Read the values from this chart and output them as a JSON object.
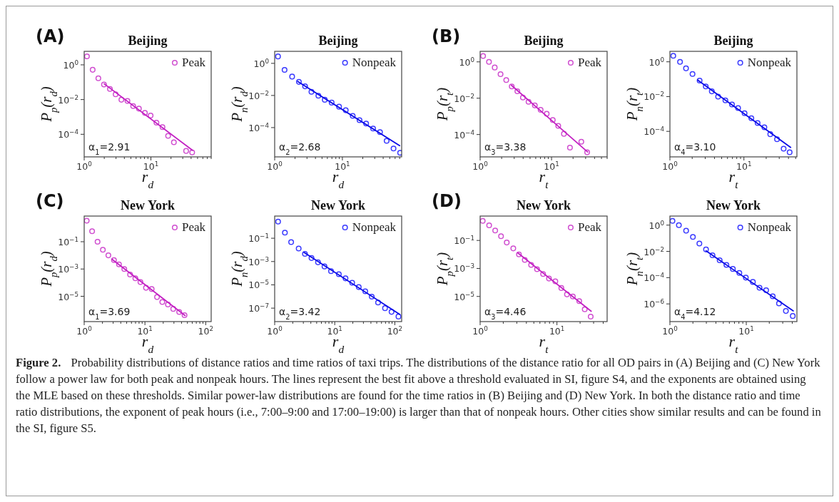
{
  "chart_data": [
    {
      "type": "scatter",
      "title": "Beijing",
      "xlabel": "r$_{d}$",
      "ylabel": "P$_{p}$(r$_{d}$)",
      "log": "xy",
      "legend": "top right",
      "marker": "circle",
      "xlim": [
        1,
        80
      ],
      "ylim": [
        5e-06,
        6
      ],
      "xticks": [
        {
          "value": 1,
          "label": "10$^{0}$"
        },
        {
          "value": 2,
          "label": null
        },
        {
          "value": 3,
          "label": null
        },
        {
          "value": 4,
          "label": null
        },
        {
          "value": 5,
          "label": null
        },
        {
          "value": 6,
          "label": null
        },
        {
          "value": 7,
          "label": null
        },
        {
          "value": 8,
          "label": null
        },
        {
          "value": 9,
          "label": null
        },
        {
          "value": 10,
          "label": "10$^{1}$"
        },
        {
          "value": 20,
          "label": null
        },
        {
          "value": 30,
          "label": null
        },
        {
          "value": 40,
          "label": null
        },
        {
          "value": 50,
          "label": null
        },
        {
          "value": 60,
          "label": null
        },
        {
          "value": 70,
          "label": null
        },
        {
          "value": 80,
          "label": null
        }
      ],
      "yticks": [
        {
          "value": 1,
          "label": "10$^{0}$"
        },
        {
          "value": 0.01,
          "label": "10$^{−2}$"
        },
        {
          "value": 0.0001,
          "label": "10$^{−4}$"
        }
      ],
      "annotations": [
        "α$_{1}$=2.91",
        "(A)"
      ],
      "series": [
        {
          "name": "Peak",
          "color": "#d04fd0",
          "x": [
            1.1,
            1.34,
            1.63,
            1.98,
            2.43,
            2.96,
            3.61,
            4.45,
            5.42,
            6.61,
            8.13,
            9.9,
            12.1,
            14.9,
            18.1,
            22.1,
            33.7,
            41.5
          ],
          "values": [
            3.1,
            0.52,
            0.17,
            0.074,
            0.041,
            0.02,
            0.0098,
            0.0083,
            0.0042,
            0.003,
            0.0017,
            0.0012,
            0.00047,
            0.00026,
            8.1e-05,
            3.5e-05,
            1.1e-05,
            9e-06
          ]
        },
        {
          "type": "line",
          "marker": "none",
          "color": "#c21fc2",
          "x": [
            2,
            42
          ],
          "values": [
            0.08,
            1.2e-05
          ]
        }
      ]
    },
    {
      "type": "scatter",
      "title": "Beijing",
      "xlabel": "r$_{d}$",
      "ylabel": "P$_{n}$(r$_{d}$)",
      "log": "xy",
      "legend": "top right",
      "marker": "circle",
      "xlim": [
        1,
        75
      ],
      "ylim": [
        1.5e-06,
        5.6
      ],
      "xticks": [
        {
          "value": 1,
          "label": "10$^{0}$"
        },
        {
          "value": 2,
          "label": null
        },
        {
          "value": 3,
          "label": null
        },
        {
          "value": 4,
          "label": null
        },
        {
          "value": 5,
          "label": null
        },
        {
          "value": 6,
          "label": null
        },
        {
          "value": 7,
          "label": null
        },
        {
          "value": 8,
          "label": null
        },
        {
          "value": 9,
          "label": null
        },
        {
          "value": 10,
          "label": "10$^{1}$"
        },
        {
          "value": 20,
          "label": null
        },
        {
          "value": 30,
          "label": null
        },
        {
          "value": 40,
          "label": null
        },
        {
          "value": 50,
          "label": null
        },
        {
          "value": 60,
          "label": null
        },
        {
          "value": 70,
          "label": null
        }
      ],
      "yticks": [
        {
          "value": 1,
          "label": "10$^{0}$"
        },
        {
          "value": 0.01,
          "label": "10$^{−2}$"
        },
        {
          "value": 0.0001,
          "label": "10$^{−4}$"
        }
      ],
      "annotations": [
        "α$_{2}$=2.68"
      ],
      "series": [
        {
          "name": "Nonpeak",
          "color": "#3a3aff",
          "x": [
            1.12,
            1.4,
            1.81,
            2.28,
            2.81,
            3.49,
            4.42,
            5.49,
            6.94,
            8.93,
            11.2,
            14.2,
            17.9,
            22.4,
            28.4,
            35.9,
            45.0,
            56.9,
            71.2
          ],
          "values": [
            2.7,
            0.39,
            0.15,
            0.07,
            0.037,
            0.017,
            0.0096,
            0.0054,
            0.0036,
            0.002,
            0.0012,
            0.00054,
            0.00029,
            0.00018,
            8.7e-05,
            5.2e-05,
            1.5e-05,
            5e-06,
            2.7e-06
          ]
        },
        {
          "type": "line",
          "marker": "none",
          "color": "#0a0ae6",
          "x": [
            2.19,
            70
          ],
          "values": [
            0.075,
            7.5e-06
          ]
        }
      ]
    },
    {
      "type": "scatter",
      "title": "Beijing",
      "xlabel": "r$_{t}$",
      "ylabel": "P$_{p}$(r$_{t}$)",
      "log": "xy",
      "legend": "top right",
      "marker": "circle",
      "xlim": [
        1,
        60
      ],
      "ylim": [
        5.9e-06,
        3.8
      ],
      "xticks": [
        {
          "value": 1,
          "label": "10$^{0}$"
        },
        {
          "value": 2,
          "label": null
        },
        {
          "value": 3,
          "label": null
        },
        {
          "value": 4,
          "label": null
        },
        {
          "value": 5,
          "label": null
        },
        {
          "value": 6,
          "label": null
        },
        {
          "value": 7,
          "label": null
        },
        {
          "value": 8,
          "label": null
        },
        {
          "value": 9,
          "label": null
        },
        {
          "value": 10,
          "label": "10$^{1}$"
        },
        {
          "value": 20,
          "label": null
        },
        {
          "value": 30,
          "label": null
        },
        {
          "value": 40,
          "label": null
        },
        {
          "value": 50,
          "label": null
        },
        {
          "value": 60,
          "label": null
        }
      ],
      "yticks": [
        {
          "value": 1,
          "label": "10$^{0}$"
        },
        {
          "value": 0.01,
          "label": "10$^{−2}$"
        },
        {
          "value": 0.0001,
          "label": "10$^{−4}$"
        }
      ],
      "annotations": [
        "α$_{3}$=3.38",
        "(B)"
      ],
      "series": [
        {
          "name": "Peak",
          "color": "#d04fd0",
          "x": [
            1.1,
            1.33,
            1.6,
            1.93,
            2.32,
            2.77,
            3.32,
            3.97,
            4.76,
            5.83,
            7.03,
            8.55,
            10.4,
            12.4,
            14.9,
            18.1,
            26.1,
            31.5
          ],
          "values": [
            2.1,
            1.0,
            0.49,
            0.21,
            0.1,
            0.044,
            0.024,
            0.011,
            0.0064,
            0.004,
            0.0023,
            0.0014,
            0.00063,
            0.0003,
            0.00011,
            1.9e-05,
            4e-05,
            1.05e-05
          ]
        },
        {
          "type": "line",
          "marker": "none",
          "color": "#c21fc2",
          "x": [
            2.75,
            32
          ],
          "values": [
            0.051,
            1.1e-05
          ]
        }
      ]
    },
    {
      "type": "scatter",
      "title": "Beijing",
      "xlabel": "r$_{t}$",
      "ylabel": "P$_{n}$(r$_{t}$)",
      "log": "xy",
      "legend": "top right",
      "marker": "circle",
      "xlim": [
        1,
        52
      ],
      "ylim": [
        3.4e-06,
        4
      ],
      "xticks": [
        {
          "value": 1,
          "label": "10$^{0}$"
        },
        {
          "value": 2,
          "label": null
        },
        {
          "value": 3,
          "label": null
        },
        {
          "value": 4,
          "label": null
        },
        {
          "value": 5,
          "label": null
        },
        {
          "value": 6,
          "label": null
        },
        {
          "value": 7,
          "label": null
        },
        {
          "value": 8,
          "label": null
        },
        {
          "value": 9,
          "label": null
        },
        {
          "value": 10,
          "label": "10$^{1}$"
        },
        {
          "value": 20,
          "label": null
        },
        {
          "value": 30,
          "label": null
        },
        {
          "value": 40,
          "label": null
        },
        {
          "value": 50,
          "label": null
        }
      ],
      "yticks": [
        {
          "value": 1,
          "label": "10$^{0}$"
        },
        {
          "value": 0.01,
          "label": "10$^{−2}$"
        },
        {
          "value": 0.0001,
          "label": "10$^{−4}$"
        }
      ],
      "annotations": [
        "α$_{4}$=3.10"
      ],
      "series": [
        {
          "name": "Nonpeak",
          "color": "#3a3aff",
          "x": [
            1.11,
            1.37,
            1.65,
            2.02,
            2.52,
            3.05,
            3.68,
            4.48,
            5.62,
            6.9,
            8.34,
            10.2,
            12.6,
            15.3,
            18.9,
            22.7,
            28.0,
            34.4,
            41.5
          ],
          "values": [
            2.2,
            1.0,
            0.42,
            0.2,
            0.083,
            0.038,
            0.02,
            0.01,
            0.0061,
            0.0035,
            0.0022,
            0.0011,
            0.00057,
            0.0003,
            0.00017,
            6.9e-05,
            3.5e-05,
            1e-05,
            6.3e-06
          ]
        },
        {
          "type": "line",
          "marker": "none",
          "color": "#0a0ae6",
          "x": [
            2.37,
            42.8
          ],
          "values": [
            0.089,
            1.2e-05
          ]
        }
      ]
    },
    {
      "type": "scatter",
      "title": "New York",
      "xlabel": "r$_{d}$",
      "ylabel": "P$_{p}$(r$_{d}$)",
      "log": "xy",
      "legend": "top right",
      "marker": "circle",
      "xlim": [
        1,
        123
      ],
      "ylim": [
        1.4e-07,
        7.6
      ],
      "xticks": [
        {
          "value": 1,
          "label": "10$^{0}$"
        },
        {
          "value": 2,
          "label": null
        },
        {
          "value": 3,
          "label": null
        },
        {
          "value": 4,
          "label": null
        },
        {
          "value": 5,
          "label": null
        },
        {
          "value": 6,
          "label": null
        },
        {
          "value": 7,
          "label": null
        },
        {
          "value": 8,
          "label": null
        },
        {
          "value": 9,
          "label": null
        },
        {
          "value": 10,
          "label": "10$^{1}$"
        },
        {
          "value": 20,
          "label": null
        },
        {
          "value": 30,
          "label": null
        },
        {
          "value": 40,
          "label": null
        },
        {
          "value": 50,
          "label": null
        },
        {
          "value": 60,
          "label": null
        },
        {
          "value": 70,
          "label": null
        },
        {
          "value": 80,
          "label": null
        },
        {
          "value": 90,
          "label": null
        },
        {
          "value": 100,
          "label": "10$^{2}$"
        }
      ],
      "yticks": [
        {
          "value": 0.1,
          "label": "10$^{−1}$"
        },
        {
          "value": 0.001,
          "label": "10$^{−3}$"
        },
        {
          "value": 1e-05,
          "label": "10$^{−5}$"
        }
      ],
      "annotations": [
        "α$_{1}$=3.69",
        "(C)"
      ],
      "series": [
        {
          "name": "Peak",
          "color": "#d04fd0",
          "x": [
            1.1,
            1.35,
            1.66,
            2.03,
            2.5,
            3.09,
            3.74,
            4.57,
            5.69,
            6.95,
            8.42,
            10.4,
            12.9,
            15.8,
            19.3,
            23.9,
            29.2,
            36.6,
            44.8
          ],
          "values": [
            3.5,
            0.59,
            0.1,
            0.026,
            0.01,
            0.0045,
            0.0022,
            0.001,
            0.00039,
            0.00021,
            0.00011,
            4.2e-05,
            3.4e-05,
            8.8e-06,
            3.8e-06,
            2.5e-06,
            1.2e-06,
            7.1e-07,
            4.1e-07
          ]
        },
        {
          "type": "line",
          "marker": "none",
          "color": "#c21fc2",
          "x": [
            2.86,
            45.7
          ],
          "values": [
            0.0052,
            3.9e-07
          ]
        }
      ]
    },
    {
      "type": "scatter",
      "title": "New York",
      "xlabel": "r$_{d}$",
      "ylabel": "P$_{n}$(r$_{d}$)",
      "log": "xy",
      "legend": "top right",
      "marker": "circle",
      "xlim": [
        1,
        130
      ],
      "ylim": [
        7e-09,
        8
      ],
      "xticks": [
        {
          "value": 1,
          "label": "10$^{0}$"
        },
        {
          "value": 2,
          "label": null
        },
        {
          "value": 3,
          "label": null
        },
        {
          "value": 4,
          "label": null
        },
        {
          "value": 5,
          "label": null
        },
        {
          "value": 6,
          "label": null
        },
        {
          "value": 7,
          "label": null
        },
        {
          "value": 8,
          "label": null
        },
        {
          "value": 9,
          "label": null
        },
        {
          "value": 10,
          "label": "10$^{1}$"
        },
        {
          "value": 20,
          "label": null
        },
        {
          "value": 30,
          "label": null
        },
        {
          "value": 40,
          "label": null
        },
        {
          "value": 50,
          "label": null
        },
        {
          "value": 60,
          "label": null
        },
        {
          "value": 70,
          "label": null
        },
        {
          "value": 80,
          "label": null
        },
        {
          "value": 90,
          "label": null
        },
        {
          "value": 100,
          "label": "10$^{2}$"
        }
      ],
      "yticks": [
        {
          "value": 0.1,
          "label": "10$^{−1}$"
        },
        {
          "value": 0.001,
          "label": "10$^{−3}$"
        },
        {
          "value": 1e-05,
          "label": "10$^{−5}$"
        },
        {
          "value": 1e-07,
          "label": "10$^{−7}$"
        }
      ],
      "annotations": [
        "α$_{2}$=3.42"
      ],
      "series": [
        {
          "name": "Nonpeak",
          "color": "#3a3aff",
          "x": [
            1.14,
            1.48,
            1.88,
            2.51,
            3.19,
            4.1,
            5.26,
            6.75,
            8.67,
            11.7,
            15.1,
            19.5,
            25.1,
            32.2,
            41.3,
            52.6,
            68.7,
            88.2,
            115
          ],
          "values": [
            2.7,
            0.3,
            0.047,
            0.013,
            0.0046,
            0.002,
            0.00086,
            0.00038,
            0.00015,
            8.2e-05,
            3.6e-05,
            1.5e-05,
            6.4e-06,
            2.8e-06,
            9.6e-07,
            3e-07,
            1e-07,
            4.8e-08,
            1.9e-08
          ]
        },
        {
          "type": "line",
          "marker": "none",
          "color": "#0a0ae6",
          "x": [
            3.08,
            120
          ],
          "values": [
            0.006,
            3e-08
          ]
        }
      ]
    },
    {
      "type": "scatter",
      "title": "New York",
      "xlabel": "r$_{t}$",
      "ylabel": "P$_{p}$(r$_{t}$)",
      "log": "xy",
      "legend": "top right",
      "marker": "circle",
      "xlim": [
        1,
        45
      ],
      "ylim": [
        1.6e-07,
        5.5
      ],
      "xticks": [
        {
          "value": 1,
          "label": "10$^{0}$"
        },
        {
          "value": 2,
          "label": null
        },
        {
          "value": 3,
          "label": null
        },
        {
          "value": 4,
          "label": null
        },
        {
          "value": 5,
          "label": null
        },
        {
          "value": 6,
          "label": null
        },
        {
          "value": 7,
          "label": null
        },
        {
          "value": 8,
          "label": null
        },
        {
          "value": 9,
          "label": null
        },
        {
          "value": 10,
          "label": "10$^{1}$"
        },
        {
          "value": 20,
          "label": null
        },
        {
          "value": 30,
          "label": null
        },
        {
          "value": 40,
          "label": null
        }
      ],
      "yticks": [
        {
          "value": 0.1,
          "label": "10$^{−1}$"
        },
        {
          "value": 0.001,
          "label": "10$^{−3}$"
        },
        {
          "value": 1e-05,
          "label": "10$^{−5}$"
        }
      ],
      "annotations": [
        "α$_{3}$=4.46",
        "(D)"
      ],
      "series": [
        {
          "name": "Peak",
          "color": "#d04fd0",
          "x": [
            1.08,
            1.31,
            1.57,
            1.87,
            2.22,
            2.7,
            3.2,
            3.81,
            4.61,
            5.5,
            6.6,
            7.87,
            9.52,
            11.4,
            13.5,
            16.1,
            19.5,
            23.0,
            27.5
          ],
          "values": [
            2.5,
            1.2,
            0.51,
            0.2,
            0.071,
            0.027,
            0.01,
            0.0041,
            0.0018,
            0.00089,
            0.0004,
            0.00019,
            0.00012,
            4e-05,
            1.4e-05,
            1e-05,
            4.7e-06,
            1.2e-06,
            3.6e-07
          ]
        },
        {
          "type": "line",
          "marker": "none",
          "color": "#c21fc2",
          "x": [
            3.08,
            27.9
          ],
          "values": [
            0.013,
            8.7e-07
          ]
        }
      ]
    },
    {
      "type": "scatter",
      "title": "New York",
      "xlabel": "r$_{t}$",
      "ylabel": "P$_{n}$(r$_{t}$)",
      "log": "xy",
      "legend": "top right",
      "marker": "circle",
      "xlim": [
        1,
        46
      ],
      "ylim": [
        4.5e-08,
        4.9
      ],
      "xticks": [
        {
          "value": 1,
          "label": "10$^{0}$"
        },
        {
          "value": 2,
          "label": null
        },
        {
          "value": 3,
          "label": null
        },
        {
          "value": 4,
          "label": null
        },
        {
          "value": 5,
          "label": null
        },
        {
          "value": 6,
          "label": null
        },
        {
          "value": 7,
          "label": null
        },
        {
          "value": 8,
          "label": null
        },
        {
          "value": 9,
          "label": null
        },
        {
          "value": 10,
          "label": "10$^{1}$"
        },
        {
          "value": 20,
          "label": null
        },
        {
          "value": 30,
          "label": null
        },
        {
          "value": 40,
          "label": null
        }
      ],
      "yticks": [
        {
          "value": 1,
          "label": "10$^{0}$"
        },
        {
          "value": 0.01,
          "label": "10$^{−2}$"
        },
        {
          "value": 0.0001,
          "label": "10$^{−4}$"
        },
        {
          "value": 1e-06,
          "label": "10$^{−6}$"
        }
      ],
      "annotations": [
        "α$_{4}$=4.12",
        "Figure 2.",
        "Probability distributions of distance ratios and time ratios of taxi trips. The distributions of the distance ratio for all OD pairs in (A) Beijing and (C) New York follow a power law for both peak and nonpeak hours. The lines represent the best fit above a threshold evaluated in SI, figure S4, and the exponents are obtained using the MLE based on these thresholds. Similar power-law distributions are found for the time ratios in (B) Beijing and (D) New York. In both the distance ratio and time ratio distributions, the exponent of peak hours (i.e., 7:00–9:00 and 17:00–19:00) is larger than that of nonpeak hours. Other cities show similar results and can be found in the SI, figure S5."
      ],
      "series": [
        {
          "name": "Nonpeak",
          "color": "#3a3aff",
          "x": [
            1.08,
            1.31,
            1.63,
            2.0,
            2.43,
            2.97,
            3.61,
            4.48,
            5.49,
            6.67,
            8.11,
            9.86,
            12.2,
            14.9,
            18.2,
            22.2,
            26.8,
            33.0,
            40.6
          ],
          "values": [
            2.1,
            1.0,
            0.38,
            0.126,
            0.04,
            0.014,
            0.005,
            0.0021,
            0.00093,
            0.00046,
            0.00023,
            0.0001,
            4.7e-05,
            1.7e-05,
            1.1e-05,
            3.8e-06,
            1.1e-06,
            2.9e-07,
            1.2e-07
          ]
        },
        {
          "type": "line",
          "marker": "none",
          "color": "#0a0ae6",
          "x": [
            2.97,
            41.2
          ],
          "values": [
            0.011,
            2.9e-07
          ]
        }
      ]
    }
  ]
}
